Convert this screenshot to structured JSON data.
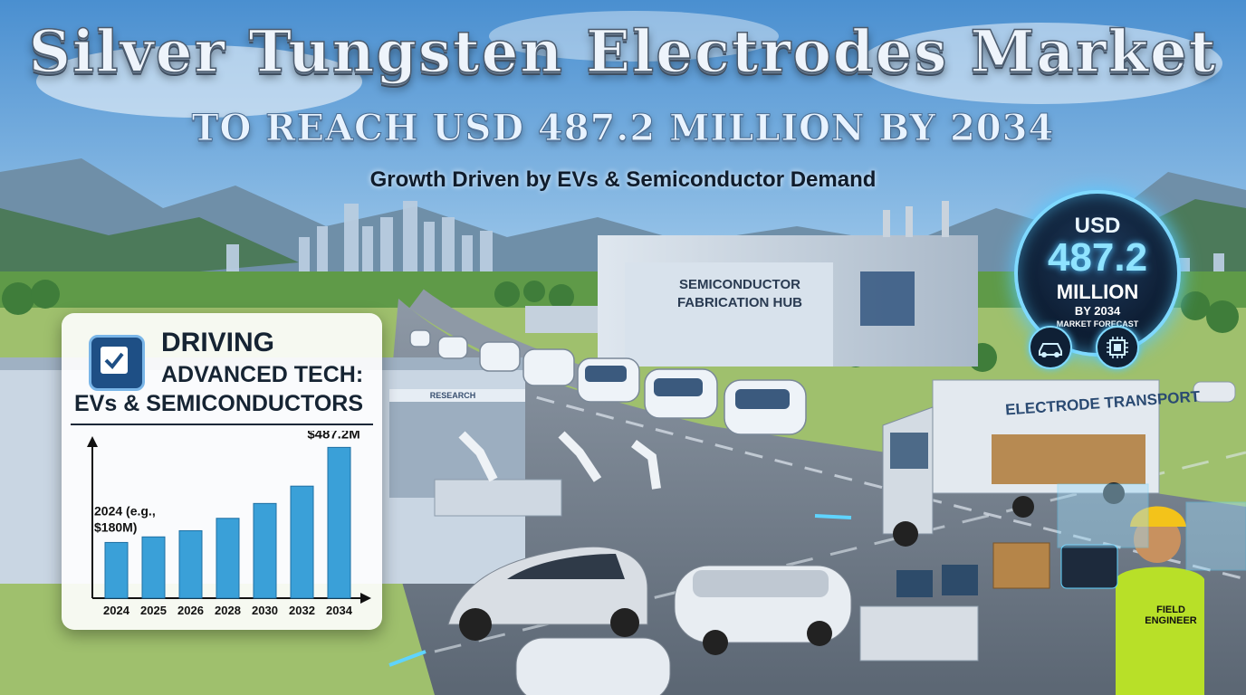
{
  "header": {
    "title": "Silver Tungsten Electrodes Market",
    "subtitle": "TO REACH USD 487.2 MILLION BY 2034",
    "tagline": "Growth Driven by EVs & Semiconductor Demand"
  },
  "badge": {
    "currency": "USD",
    "amount": "487.2",
    "unit": "MILLION",
    "year": "BY 2034",
    "caption": "MARKET FORECAST",
    "icons": [
      "car-icon",
      "chip-icon"
    ],
    "glow_color": "#7fd9ff"
  },
  "scene": {
    "fab_sign": "SEMICONDUCTOR FABRICATION HUB",
    "research_sign": "RESEARCH",
    "truck_label": "ELECTRODE TRANSPORT",
    "vest_label": "FIELD ENGINEER"
  },
  "panel": {
    "heading_1": "DRIVING",
    "heading_2": "ADVANCED TECH:",
    "heading_3": "EVs & SEMICONDUCTORS",
    "icon": "chip-check-icon"
  },
  "chart_data": {
    "type": "bar",
    "categories": [
      "2024",
      "2025",
      "2026",
      "2028",
      "2030",
      "2032",
      "2034"
    ],
    "values": [
      180,
      198,
      218,
      258,
      306,
      362,
      487.2
    ],
    "ylim": [
      0,
      500
    ],
    "annotations": [
      {
        "category": "2024",
        "text": "2024 (e.g., $180M)"
      },
      {
        "category": "2034",
        "text": "$487.2M"
      }
    ],
    "bar_color": "#3aa0d8"
  }
}
